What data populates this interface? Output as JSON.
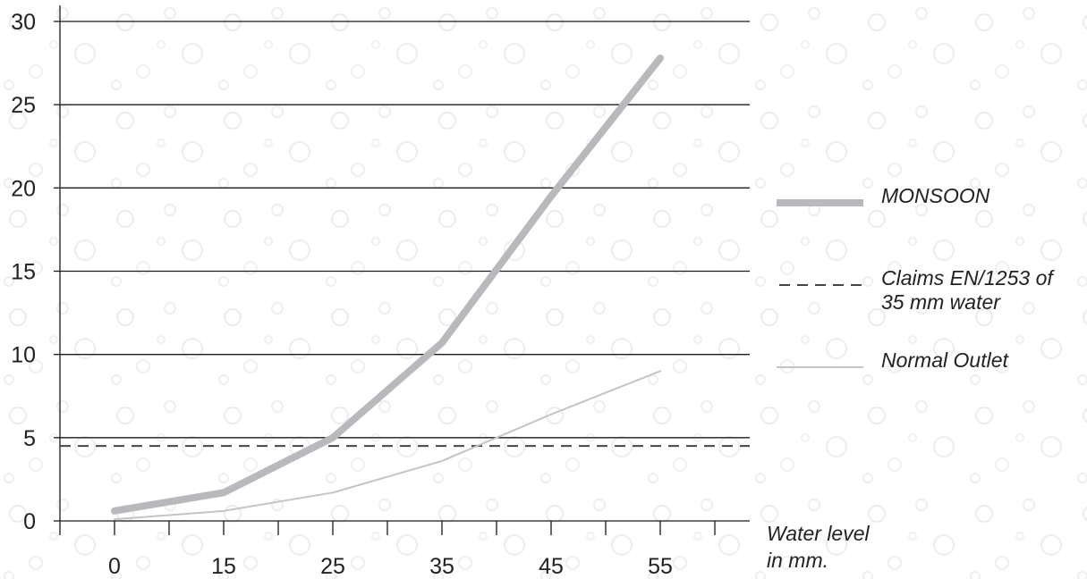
{
  "chart_data": {
    "type": "line",
    "x": [
      0,
      15,
      25,
      35,
      45,
      55
    ],
    "xlabel": [
      "Water level",
      "in mm."
    ],
    "ylim": [
      0,
      30
    ],
    "yticks": [
      0,
      5,
      10,
      15,
      20,
      25,
      30
    ],
    "grid": true,
    "legend_position": "right",
    "series": [
      {
        "name": "MONSOON",
        "values": [
          0.6,
          1.7,
          5.0,
          10.7,
          19.5,
          27.8
        ],
        "color": "#b9b9bd",
        "style": "thick"
      },
      {
        "name": "Normal Outlet",
        "values": [
          0.1,
          0.6,
          1.7,
          3.6,
          6.4,
          9.0
        ],
        "color": "#c4c4c4",
        "style": "thin"
      }
    ],
    "reference_line": {
      "name": [
        "Claims EN/1253 of",
        "35 mm water"
      ],
      "value": 4.5,
      "color": "#444444",
      "style": "dashed"
    }
  }
}
